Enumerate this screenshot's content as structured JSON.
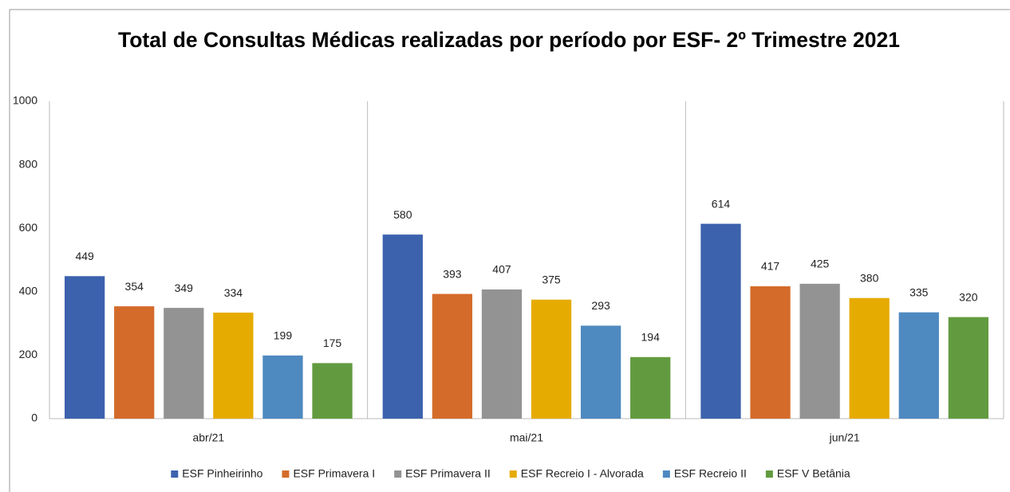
{
  "chart_data": {
    "type": "bar",
    "title": "Total de Consultas Médicas realizadas por período por ESF- 2º Trimestre 2021",
    "categories": [
      "abr/21",
      "mai/21",
      "jun/21"
    ],
    "series": [
      {
        "name": "ESF Pinheirinho",
        "color": "#3c62ad",
        "values": [
          449,
          580,
          614
        ]
      },
      {
        "name": "ESF Primavera I",
        "color": "#d46b2a",
        "values": [
          354,
          393,
          417
        ]
      },
      {
        "name": "ESF Primavera II",
        "color": "#939393",
        "values": [
          349,
          407,
          425
        ]
      },
      {
        "name": "ESF Recreio I - Alvorada",
        "color": "#e6ab00",
        "values": [
          334,
          375,
          380
        ]
      },
      {
        "name": "ESF Recreio II",
        "color": "#4e89c0",
        "values": [
          199,
          293,
          335
        ]
      },
      {
        "name": "ESF V Betânia",
        "color": "#629b3f",
        "values": [
          175,
          194,
          320
        ]
      }
    ],
    "ylim": [
      0,
      1000
    ],
    "yticks": [
      0,
      200,
      400,
      600,
      800,
      1000
    ],
    "legend": "bottom"
  }
}
